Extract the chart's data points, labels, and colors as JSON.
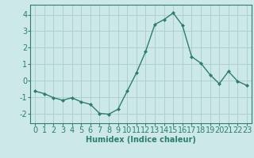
{
  "x": [
    0,
    1,
    2,
    3,
    4,
    5,
    6,
    7,
    8,
    9,
    10,
    11,
    12,
    13,
    14,
    15,
    16,
    17,
    18,
    19,
    20,
    21,
    22,
    23
  ],
  "y": [
    -0.65,
    -0.8,
    -1.05,
    -1.2,
    -1.05,
    -1.3,
    -1.45,
    -2.0,
    -2.05,
    -1.75,
    -0.65,
    0.45,
    1.75,
    3.4,
    3.7,
    4.1,
    3.35,
    1.45,
    1.05,
    0.35,
    -0.2,
    0.55,
    -0.05,
    -0.3
  ],
  "line_color": "#2e7d6e",
  "marker": "D",
  "markersize": 2.0,
  "linewidth": 1.0,
  "bg_color": "#cce8e8",
  "grid_color": "#aacccc",
  "xlabel": "Humidex (Indice chaleur)",
  "xlim": [
    -0.5,
    23.5
  ],
  "ylim": [
    -2.6,
    4.6
  ],
  "yticks": [
    -2,
    -1,
    0,
    1,
    2,
    3,
    4
  ],
  "xticks": [
    0,
    1,
    2,
    3,
    4,
    5,
    6,
    7,
    8,
    9,
    10,
    11,
    12,
    13,
    14,
    15,
    16,
    17,
    18,
    19,
    20,
    21,
    22,
    23
  ],
  "xlabel_fontsize": 7,
  "tick_fontsize": 7
}
